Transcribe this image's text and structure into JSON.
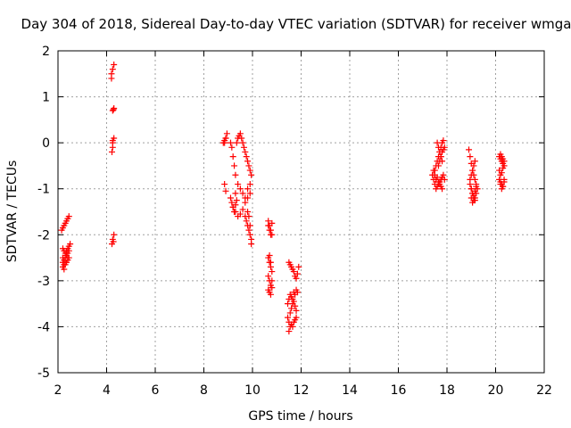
{
  "chart_data": {
    "type": "scatter",
    "title": "Day 304 of 2018, Sidereal Day-to-day VTEC variation (SDTVAR) for receiver wmga",
    "xlabel": "GPS time / hours",
    "ylabel": "SDTVAR / TECUs",
    "xlim": [
      2,
      22
    ],
    "ylim": [
      -5,
      2
    ],
    "xticks": [
      2,
      4,
      6,
      8,
      10,
      12,
      14,
      16,
      18,
      20,
      22
    ],
    "yticks": [
      -5,
      -4,
      -3,
      -2,
      -1,
      0,
      1,
      2
    ],
    "grid": true,
    "marker": "+",
    "color": "#ff0000",
    "series": [
      {
        "name": "SDTVAR",
        "x": [
          2.15,
          2.2,
          2.25,
          2.3,
          2.35,
          2.4,
          2.45,
          2.2,
          2.25,
          2.3,
          2.35,
          2.4,
          2.45,
          2.5,
          2.2,
          2.25,
          2.3,
          2.35,
          2.4,
          2.2,
          2.25,
          2.3,
          2.35,
          2.4,
          2.45,
          2.2,
          2.25,
          2.3,
          2.35,
          2.4,
          2.45,
          4.2,
          4.2,
          4.25,
          4.3,
          4.25,
          4.3,
          4.28,
          4.25,
          4.3,
          4.25,
          4.22,
          4.25,
          4.3,
          4.22,
          4.25,
          4.28,
          8.8,
          8.85,
          8.9,
          8.95,
          8.85,
          8.9,
          8.85,
          8.9,
          9.1,
          9.15,
          9.2,
          9.25,
          9.3,
          9.35,
          9.4,
          9.45,
          9.5,
          9.55,
          9.6,
          9.65,
          9.7,
          9.75,
          9.8,
          9.85,
          9.9,
          9.95,
          9.1,
          9.15,
          9.2,
          9.25,
          9.3,
          9.35,
          9.3,
          9.4,
          9.5,
          9.6,
          9.7,
          9.8,
          9.9,
          9.2,
          9.3,
          9.4,
          9.5,
          9.6,
          9.7,
          9.8,
          9.9,
          9.7,
          9.75,
          9.8,
          9.85,
          9.9,
          9.95,
          9.8,
          9.85,
          9.9,
          9.95,
          10.65,
          10.7,
          10.75,
          10.8,
          10.65,
          10.7,
          10.75,
          10.8,
          10.65,
          10.7,
          10.75,
          10.8,
          10.65,
          10.7,
          10.75,
          10.8,
          10.65,
          10.7,
          10.75,
          10.8,
          10.7,
          10.75,
          11.5,
          11.55,
          11.6,
          11.65,
          11.7,
          11.75,
          11.8,
          11.85,
          11.9,
          11.45,
          11.5,
          11.55,
          11.6,
          11.65,
          11.7,
          11.75,
          11.8,
          11.85,
          11.45,
          11.5,
          11.55,
          11.6,
          11.65,
          11.7,
          11.75,
          11.8,
          11.5,
          11.55,
          11.6,
          11.65,
          11.7,
          11.75,
          11.8,
          17.4,
          17.45,
          17.5,
          17.55,
          17.6,
          17.65,
          17.7,
          17.75,
          17.8,
          17.85,
          17.9,
          17.5,
          17.55,
          17.6,
          17.65,
          17.7,
          17.75,
          17.8,
          17.85,
          17.45,
          17.5,
          17.55,
          17.6,
          17.65,
          17.7,
          17.75,
          17.8,
          17.6,
          17.65,
          17.7,
          17.75,
          17.8,
          17.65,
          17.7,
          17.75,
          17.8,
          17.85,
          17.9,
          18.9,
          18.95,
          19.0,
          19.05,
          19.1,
          19.15,
          19.2,
          18.95,
          19.0,
          19.05,
          19.1,
          19.15,
          19.2,
          19.25,
          18.95,
          19.0,
          19.05,
          19.1,
          19.15,
          19.0,
          19.05,
          19.1,
          19.15,
          19.2,
          19.0,
          19.05,
          19.1,
          19.15,
          20.15,
          20.2,
          20.25,
          20.3,
          20.35,
          20.15,
          20.2,
          20.25,
          20.3,
          20.35,
          20.15,
          20.2,
          20.25,
          20.3,
          20.35,
          20.2,
          20.25,
          20.3,
          20.35,
          20.2,
          20.25,
          20.3,
          20.35
        ],
        "y": [
          -1.9,
          -1.85,
          -1.8,
          -1.75,
          -1.7,
          -1.65,
          -1.6,
          -2.3,
          -2.35,
          -2.4,
          -2.35,
          -2.3,
          -2.25,
          -2.2,
          -2.5,
          -2.55,
          -2.45,
          -2.4,
          -2.5,
          -2.6,
          -2.65,
          -2.55,
          -2.45,
          -2.4,
          -2.35,
          -2.7,
          -2.75,
          -2.65,
          -2.6,
          -2.55,
          -2.5,
          1.4,
          1.5,
          1.6,
          1.7,
          0.7,
          0.75,
          0.72,
          0.0,
          0.1,
          0.05,
          -0.2,
          -0.1,
          -2.0,
          -2.2,
          -2.1,
          -2.15,
          0.0,
          0.05,
          0.1,
          0.2,
          0.0,
          0.1,
          -0.9,
          -1.05,
          0.0,
          -0.1,
          -0.3,
          -0.5,
          -0.7,
          0.0,
          0.1,
          0.15,
          0.2,
          0.1,
          0.0,
          -0.1,
          -0.2,
          -0.3,
          -0.4,
          -0.5,
          -0.6,
          -0.7,
          -1.2,
          -1.3,
          -1.4,
          -1.5,
          -1.35,
          -1.25,
          -1.1,
          -0.9,
          -1.0,
          -1.1,
          -1.2,
          -1.0,
          -0.9,
          -1.4,
          -1.5,
          -1.6,
          -1.55,
          -1.45,
          -1.3,
          -1.2,
          -1.1,
          -1.6,
          -1.7,
          -1.8,
          -1.9,
          -2.0,
          -2.1,
          -1.5,
          -1.6,
          -1.8,
          -2.2,
          -1.7,
          -1.8,
          -1.9,
          -2.0,
          -1.8,
          -1.9,
          -2.0,
          -1.75,
          -2.5,
          -2.6,
          -2.7,
          -2.8,
          -2.9,
          -3.0,
          -3.1,
          -3.0,
          -3.2,
          -3.25,
          -3.3,
          -3.15,
          -2.45,
          -2.6,
          -2.6,
          -2.65,
          -2.7,
          -2.75,
          -2.8,
          -2.9,
          -2.95,
          -2.85,
          -2.7,
          -3.5,
          -3.4,
          -3.3,
          -3.35,
          -3.4,
          -3.25,
          -3.3,
          -3.2,
          -3.25,
          -3.8,
          -3.9,
          -4.0,
          -3.95,
          -4.0,
          -3.9,
          -3.85,
          -3.8,
          -4.1,
          -3.7,
          -3.6,
          -3.5,
          -3.45,
          -3.55,
          -3.65,
          -0.7,
          -0.8,
          -0.9,
          -1.0,
          -0.95,
          -0.9,
          -0.85,
          -0.8,
          -0.75,
          -0.7,
          -0.8,
          -0.6,
          -0.5,
          -0.4,
          -0.3,
          -0.2,
          -0.1,
          0.0,
          0.05,
          -0.6,
          -0.7,
          -0.8,
          -0.75,
          -0.85,
          -0.9,
          -0.95,
          -1.0,
          0.0,
          -0.1,
          -0.2,
          -0.3,
          -0.4,
          -0.5,
          -0.4,
          -0.3,
          -0.2,
          -0.15,
          -0.1,
          -0.15,
          -0.3,
          -0.45,
          -0.6,
          -0.7,
          -0.8,
          -0.9,
          -0.9,
          -1.0,
          -1.1,
          -1.2,
          -1.25,
          -1.1,
          -1.0,
          -0.8,
          -0.7,
          -0.6,
          -0.5,
          -0.4,
          -1.0,
          -1.1,
          -1.15,
          -1.05,
          -0.95,
          -1.2,
          -1.3,
          -1.25,
          -1.2,
          -0.3,
          -0.35,
          -0.4,
          -0.45,
          -0.5,
          -0.6,
          -0.7,
          -0.65,
          -0.55,
          -0.5,
          -0.8,
          -0.9,
          -1.0,
          -0.95,
          -0.85,
          -0.25,
          -0.3,
          -0.35,
          -0.4,
          -0.85,
          -0.9,
          -0.95,
          -0.8
        ]
      }
    ]
  }
}
